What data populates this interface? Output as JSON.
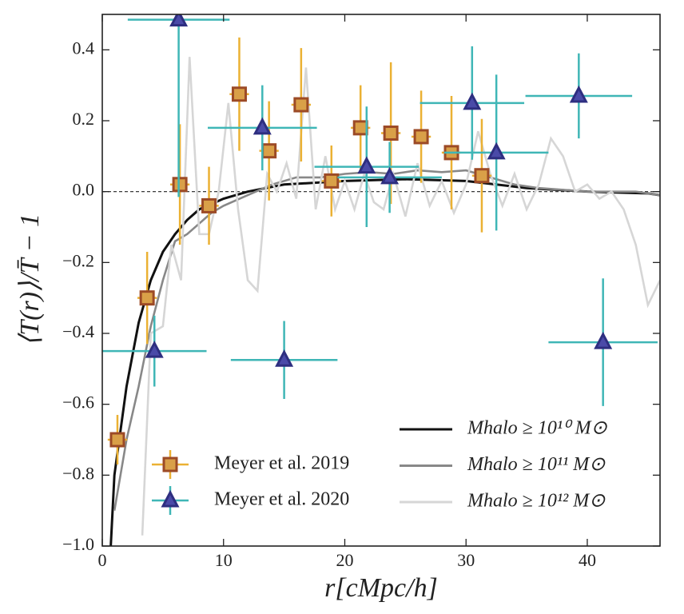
{
  "chart_data": {
    "type": "line",
    "xlabel": "r[cMpc/h]",
    "ylabel": "⟨T(r)⟩/T̄ − 1",
    "xlim": [
      0,
      46
    ],
    "ylim": [
      -1.0,
      0.5
    ],
    "xticks": [
      0,
      10,
      20,
      30,
      40
    ],
    "yticks": [
      0.4,
      0.2,
      {
        "value": 0,
        "label": "0.0"
      },
      {
        "value": -0.2,
        "label": "−0.2"
      },
      {
        "value": -0.4,
        "label": "−0.4"
      },
      {
        "value": -0.6,
        "label": "−0.6"
      },
      {
        "value": -0.8,
        "label": "−0.8"
      },
      {
        "value": -1.0,
        "label": "−1.0"
      }
    ],
    "hline": 0,
    "series": [
      {
        "name": "Mhalo ≥ 10¹⁰ M⊙",
        "type": "line",
        "color": "#111111",
        "x": [
          0.7,
          1,
          2,
          3,
          4,
          5,
          6,
          7,
          8,
          10,
          12,
          15,
          20,
          25,
          30,
          35,
          40,
          45,
          46
        ],
        "values": [
          -1.0,
          -0.8,
          -0.55,
          -0.37,
          -0.25,
          -0.17,
          -0.12,
          -0.08,
          -0.05,
          -0.02,
          0.0,
          0.02,
          0.03,
          0.035,
          0.03,
          0.01,
          0.0,
          -0.005,
          -0.01
        ]
      },
      {
        "name": "Mhalo ≥ 10¹¹ M⊙",
        "type": "line",
        "color": "#888888",
        "x": [
          1,
          1.5,
          2,
          3,
          4,
          5,
          6,
          7,
          8,
          9,
          10,
          12,
          14,
          16,
          18,
          20,
          22,
          24,
          26,
          28,
          30,
          32,
          34,
          36,
          40,
          44,
          46
        ],
        "values": [
          -0.9,
          -0.8,
          -0.7,
          -0.55,
          -0.38,
          -0.25,
          -0.14,
          -0.12,
          -0.09,
          -0.06,
          -0.04,
          -0.01,
          0.02,
          0.04,
          0.04,
          0.05,
          0.055,
          0.05,
          0.06,
          0.055,
          0.06,
          0.04,
          0.02,
          0.01,
          0.0,
          0.0,
          -0.01
        ]
      },
      {
        "name": "Mhalo ≥ 10¹² M⊙",
        "type": "line",
        "color": "#d6d6d6",
        "x": [
          3.3,
          4,
          5,
          5.7,
          6.5,
          7.2,
          8,
          8.8,
          9.6,
          10.4,
          11.2,
          12,
          12.8,
          13.6,
          14.4,
          15.2,
          16,
          16.8,
          17.6,
          18.4,
          19.2,
          20,
          20.8,
          21.6,
          22.4,
          23.2,
          24,
          25,
          26,
          27,
          28,
          29,
          30,
          31,
          32,
          33,
          34,
          35,
          36,
          37,
          38,
          39,
          40,
          41,
          42,
          43,
          44,
          45,
          46
        ],
        "values": [
          -0.97,
          -0.4,
          -0.38,
          -0.15,
          -0.25,
          0.38,
          -0.12,
          -0.12,
          0.0,
          0.25,
          -0.05,
          -0.25,
          -0.28,
          0.05,
          0.0,
          0.08,
          -0.02,
          0.35,
          -0.05,
          0.1,
          -0.05,
          0.03,
          -0.05,
          0.05,
          -0.03,
          -0.05,
          0.05,
          -0.07,
          0.08,
          -0.04,
          0.03,
          -0.06,
          0.02,
          0.17,
          0.05,
          -0.04,
          0.05,
          -0.05,
          0.02,
          0.15,
          0.1,
          0.0,
          0.02,
          -0.02,
          0.0,
          -0.05,
          -0.15,
          -0.32,
          -0.25
        ]
      },
      {
        "name": "Meyer et al. 2019",
        "type": "errorbar",
        "marker": "square",
        "color": "#d9a048",
        "edgecolor": "#9c4a26",
        "ecolor": "#ebb133",
        "x": [
          1.25,
          3.7,
          6.4,
          8.8,
          11.3,
          13.75,
          16.4,
          18.9,
          21.3,
          23.8,
          26.3,
          28.8,
          31.3
        ],
        "values": [
          -0.7,
          -0.3,
          0.02,
          -0.04,
          0.275,
          0.115,
          0.245,
          0.03,
          0.18,
          0.165,
          0.155,
          0.11,
          0.045
        ],
        "xerr": [
          0.8,
          0.8,
          0.8,
          0.8,
          0.8,
          0.8,
          0.8,
          0.8,
          0.8,
          0.8,
          0.8,
          0.8,
          0.8
        ],
        "yerr": [
          0.07,
          0.13,
          0.17,
          0.11,
          0.16,
          0.14,
          0.16,
          0.1,
          0.12,
          0.2,
          0.13,
          0.16,
          0.16
        ]
      },
      {
        "name": "Meyer et al. 2020",
        "type": "errorbar",
        "marker": "triangle",
        "color": "#4a4aa8",
        "edgecolor": "#2e2e80",
        "ecolor": "#3fb6b6",
        "x": [
          6.3,
          4.3,
          13.2,
          15.0,
          21.8,
          23.7,
          30.5,
          32.5,
          39.3,
          41.3
        ],
        "values": [
          0.485,
          -0.45,
          0.18,
          -0.475,
          0.07,
          0.04,
          0.25,
          0.11,
          0.27,
          -0.425
        ],
        "xerr": [
          4.2,
          4.3,
          4.5,
          4.4,
          4.3,
          4.3,
          4.3,
          4.3,
          4.4,
          4.5
        ],
        "yerr": [
          0.5,
          0.1,
          0.12,
          0.11,
          0.17,
          0.1,
          0.16,
          0.22,
          0.12,
          0.18
        ]
      }
    ]
  }
}
